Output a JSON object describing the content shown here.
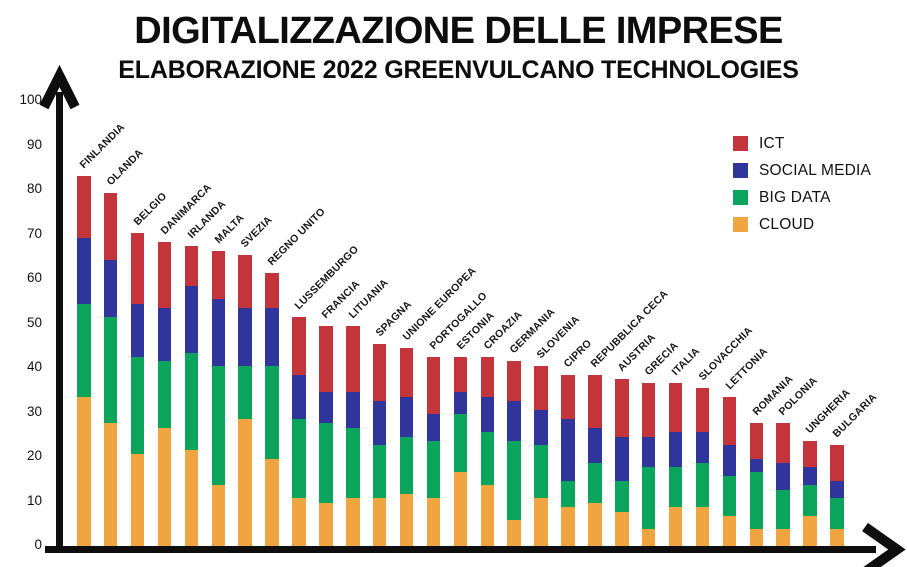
{
  "header": {
    "title": "DIGITALIZZAZIONE DELLE IMPRESE",
    "subtitle": "ELABORAZIONE 2022 GREENVULCANO TECHNOLOGIES"
  },
  "chart_data": {
    "type": "bar",
    "stacked": true,
    "title": "DIGITALIZZAZIONE DELLE IMPRESE",
    "subtitle": "ELABORAZIONE 2022 GREENVULCANO TECHNOLOGIES",
    "ylabel": "",
    "xlabel": "",
    "ylim": [
      0,
      100
    ],
    "yticks": [
      0,
      10,
      20,
      30,
      40,
      50,
      60,
      70,
      80,
      90,
      100
    ],
    "grid": false,
    "legend_position": "top-right",
    "legend_order": [
      "ICT",
      "SOCIAL MEDIA",
      "BIG DATA",
      "CLOUD"
    ],
    "categories": [
      "FINLANDIA",
      "OLANDA",
      "BELGIO",
      "DANIMARCA",
      "IRLANDA",
      "MALTA",
      "SVEZIA",
      "REGNO UNITO",
      "LUSSEMBURGO",
      "FRANCIA",
      "LITUANIA",
      "SPAGNA",
      "UNIONE EUROPEA",
      "PORTOGALLO",
      "ESTONIA",
      "CROAZIA",
      "GERMANIA",
      "SLOVENIA",
      "CIPRO",
      "REPUBBLICA CECA",
      "AUSTRIA",
      "GRECIA",
      "ITALIA",
      "SLOVACCHIA",
      "LETTONIA",
      "ROMANIA",
      "POLONIA",
      "UNGHERIA",
      "BULGARIA"
    ],
    "series": [
      {
        "name": "CLOUD",
        "color": "#F0A541",
        "values": [
          34,
          28,
          21,
          27,
          22,
          14,
          29,
          20,
          11,
          10,
          11,
          11,
          12,
          11,
          17,
          14,
          6,
          11,
          9,
          10,
          8,
          4,
          9,
          9,
          7,
          4,
          4,
          7,
          4
        ]
      },
      {
        "name": "BIG DATA",
        "color": "#0BA45C",
        "values": [
          21,
          24,
          22,
          15,
          22,
          27,
          12,
          21,
          18,
          18,
          16,
          12,
          13,
          13,
          13,
          12,
          18,
          12,
          6,
          9,
          7,
          14,
          9,
          10,
          9,
          13,
          9,
          7,
          7
        ]
      },
      {
        "name": "SOCIAL MEDIA",
        "color": "#2F359B",
        "values": [
          15,
          13,
          12,
          12,
          15,
          15,
          13,
          13,
          10,
          7,
          8,
          10,
          9,
          6,
          5,
          8,
          9,
          8,
          14,
          8,
          10,
          7,
          8,
          7,
          7,
          3,
          6,
          4,
          4
        ]
      },
      {
        "name": "ICT",
        "color": "#C4353B",
        "values": [
          14,
          15,
          16,
          15,
          9,
          11,
          12,
          8,
          13,
          15,
          15,
          13,
          11,
          13,
          8,
          9,
          9,
          10,
          10,
          12,
          13,
          12,
          11,
          10,
          11,
          8,
          9,
          6,
          8
        ]
      }
    ],
    "totals": [
      84,
      80,
      71,
      69,
      68,
      67,
      66,
      62,
      52,
      50,
      50,
      46,
      45,
      43,
      43,
      43,
      42,
      41,
      39,
      39,
      38,
      37,
      37,
      36,
      34,
      28,
      28,
      24,
      23
    ]
  }
}
